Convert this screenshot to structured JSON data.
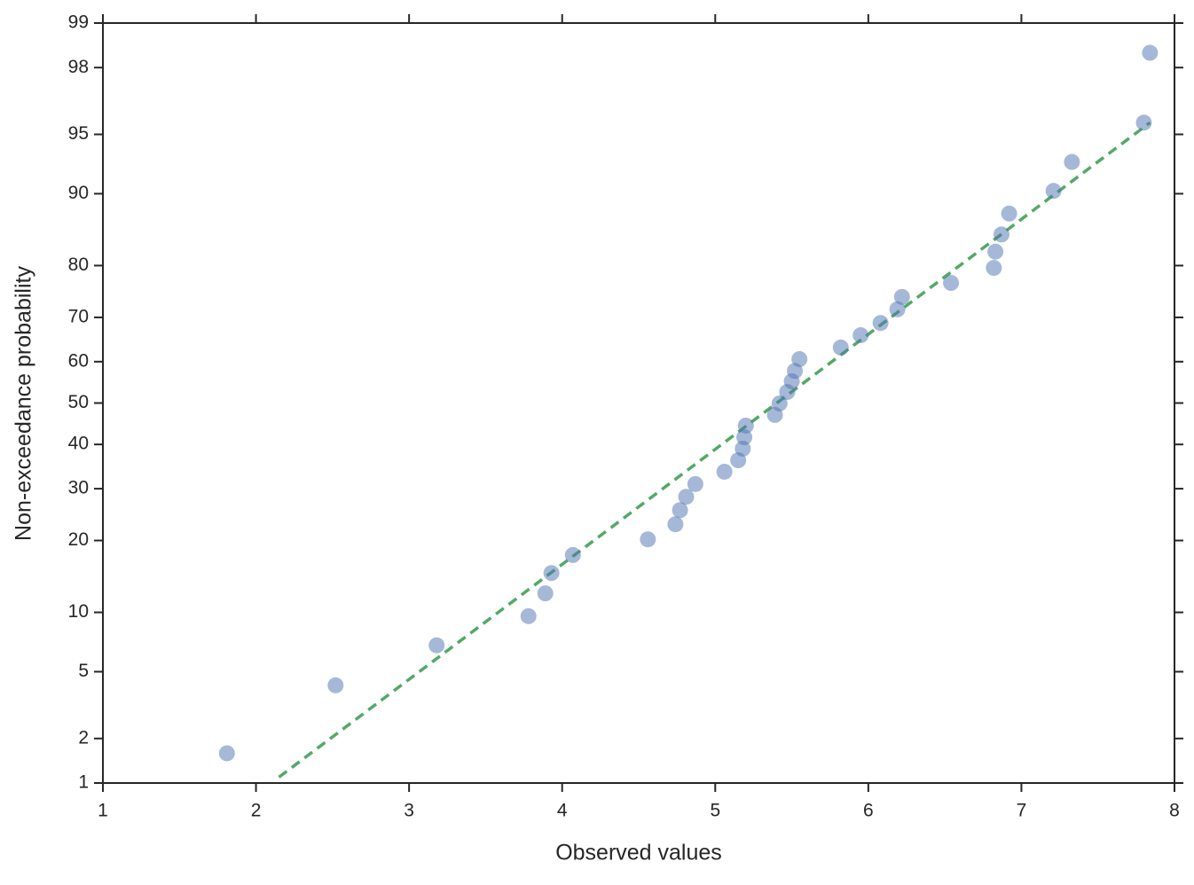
{
  "chart_data": {
    "type": "scatter",
    "xlabel": "Observed values",
    "ylabel": "Non-exceedance probability",
    "yscale": "probability",
    "xlim": [
      1,
      8
    ],
    "xticks": [
      1,
      2,
      3,
      4,
      5,
      6,
      7,
      8
    ],
    "ylim": [
      1,
      99
    ],
    "yticks": [
      1,
      2,
      5,
      10,
      20,
      30,
      40,
      50,
      60,
      70,
      80,
      90,
      95,
      98,
      99
    ],
    "series": [
      {
        "color": "#4c72b0",
        "x": [
          1.81,
          2.52,
          3.18,
          3.78,
          3.89,
          3.93,
          4.07,
          4.56,
          4.74,
          4.77,
          4.81,
          4.87,
          5.06,
          5.15,
          5.18,
          5.19,
          5.2,
          5.39,
          5.42,
          5.47,
          5.5,
          5.52,
          5.55,
          5.82,
          5.95,
          6.08,
          6.19,
          6.22,
          6.54,
          6.82,
          6.83,
          6.87,
          6.92,
          7.21,
          7.33,
          7.8,
          7.84
        ],
        "values": [
          1.6,
          4.2,
          6.9,
          9.6,
          12.2,
          14.9,
          17.6,
          20.2,
          22.9,
          25.6,
          28.3,
          31.0,
          33.7,
          36.3,
          39.0,
          41.7,
          44.5,
          47.1,
          49.9,
          52.7,
          55.3,
          57.8,
          60.6,
          63.3,
          66.1,
          68.8,
          71.7,
          74.2,
          76.9,
          79.6,
          82.3,
          84.9,
          87.7,
          90.3,
          93.0,
          95.7,
          98.4
        ]
      }
    ],
    "fit_line": {
      "color": "#55a868",
      "x": [
        2.15,
        7.84
      ],
      "values": [
        1.1,
        95.7
      ]
    }
  }
}
